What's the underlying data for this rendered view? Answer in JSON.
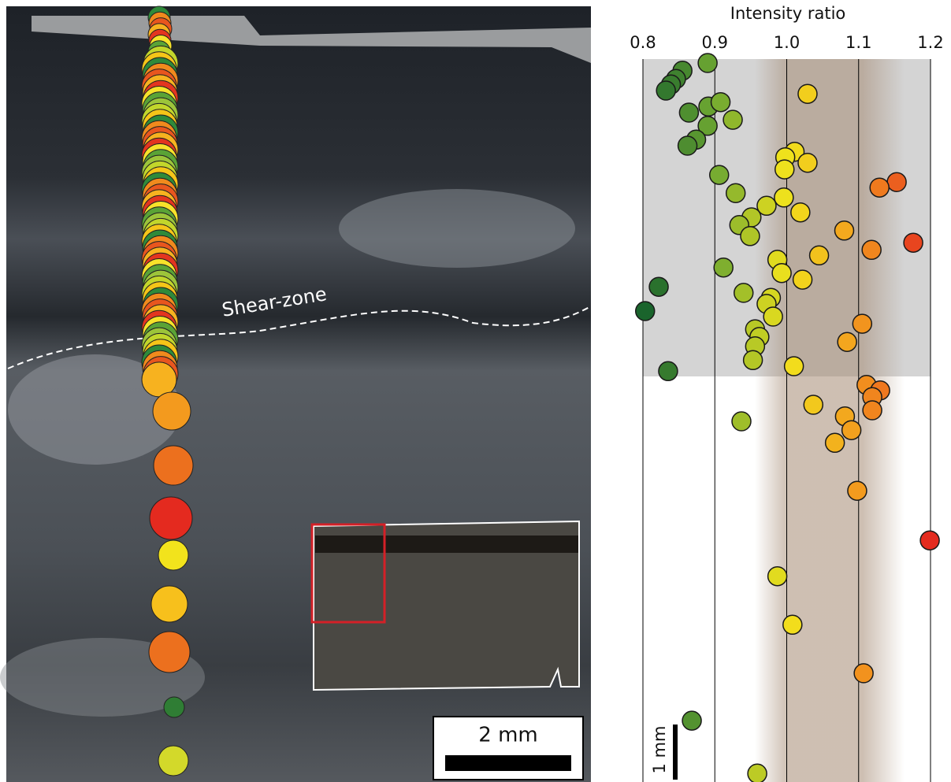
{
  "photo": {
    "label": "Shear-zone",
    "scale_bar": "2 mm"
  },
  "chart_data": {
    "type": "scatter",
    "title": "Intensity ratio",
    "scale_bar": "1 mm",
    "xlim": [
      0.8,
      1.2
    ],
    "xticks": [
      0.8,
      0.9,
      {
        "value": 1,
        "label": "1.0"
      },
      1.1,
      1.2
    ],
    "ylim": [
      0,
      13
    ],
    "grid": true,
    "colormap": [
      "#17622c",
      "#6fa832",
      "#f2e31c",
      "#f39a1e",
      "#e42a1f"
    ],
    "x": [
      0.89,
      0.855,
      0.846,
      0.839,
      0.832,
      1.029,
      0.864,
      0.891,
      0.908,
      0.925,
      0.89,
      0.874,
      0.862,
      1.011,
      0.998,
      1.029,
      0.997,
      0.906,
      1.153,
      1.129,
      0.929,
      0.996,
      0.972,
      1.019,
      0.951,
      0.934,
      1.08,
      0.949,
      1.176,
      1.118,
      1.045,
      0.987,
      0.912,
      0.993,
      1.022,
      0.822,
      0.94,
      0.978,
      0.972,
      0.803,
      0.981,
      1.105,
      0.956,
      0.962,
      1.084,
      0.956,
      0.953,
      1.01,
      0.835,
      1.111,
      1.13,
      1.119,
      1.037,
      1.119,
      0.937,
      1.081,
      1.09,
      1.067,
      1.098,
      1.199,
      0.987,
      1.008,
      1.107,
      0.868,
      0.959
    ],
    "y": [
      0.0,
      0.14,
      0.29,
      0.39,
      0.5,
      0.56,
      0.9,
      0.79,
      0.71,
      1.03,
      1.14,
      1.39,
      1.5,
      1.61,
      1.71,
      1.81,
      1.93,
      2.03,
      2.16,
      2.26,
      2.36,
      2.44,
      2.59,
      2.71,
      2.8,
      2.94,
      3.04,
      3.14,
      3.26,
      3.39,
      3.49,
      3.57,
      3.71,
      3.81,
      3.93,
      4.06,
      4.17,
      4.26,
      4.37,
      4.5,
      4.6,
      4.73,
      4.83,
      4.97,
      5.06,
      5.14,
      5.39,
      5.5,
      5.59,
      5.84,
      5.94,
      6.06,
      6.2,
      6.3,
      6.5,
      6.41,
      6.66,
      6.89,
      7.76,
      8.66,
      9.31,
      10.19,
      11.07,
      11.93,
      12.89
    ]
  }
}
